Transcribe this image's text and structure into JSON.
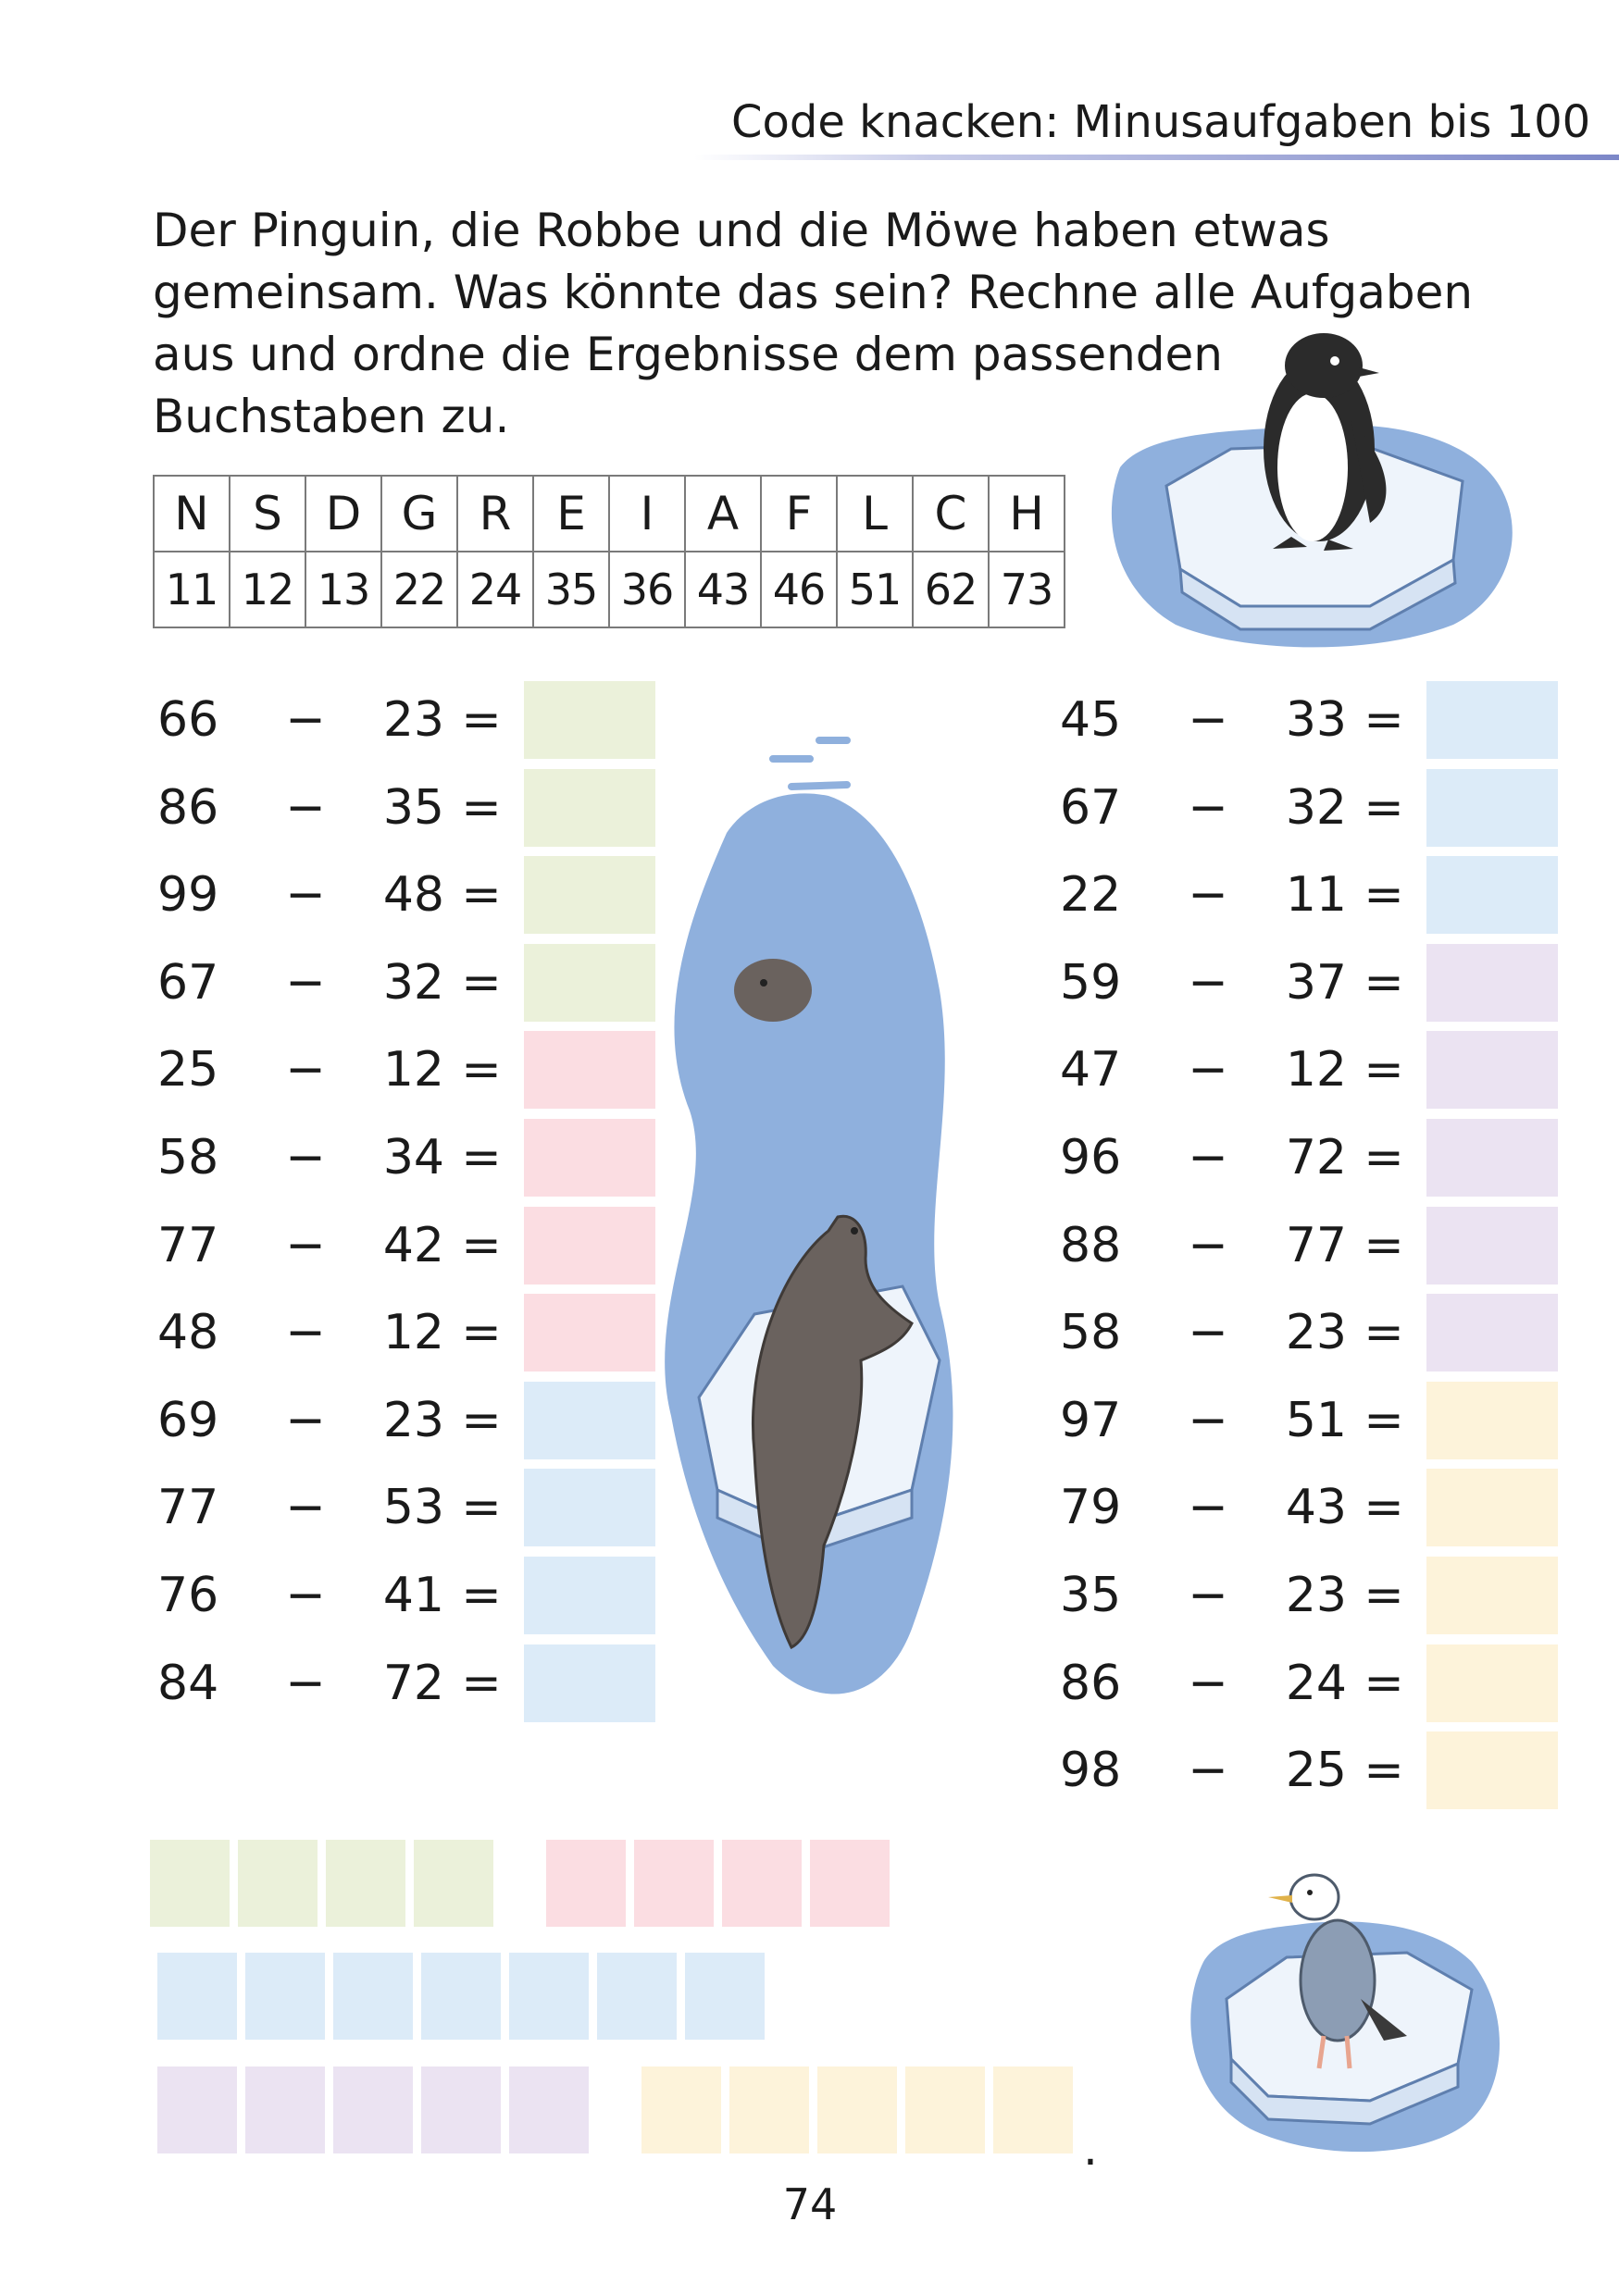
{
  "header": {
    "title": "Code knacken: Minusaufgaben bis 100"
  },
  "instructions": {
    "lines": [
      "Der Pinguin, die Robbe und die Möwe haben etwas",
      "gemeinsam. Was könnte das sein? Rechne alle Aufgaben",
      "aus und ordne die Ergebnisse dem passenden",
      "Buchstaben zu."
    ]
  },
  "code_table": {
    "letters": [
      "N",
      "S",
      "D",
      "G",
      "R",
      "E",
      "I",
      "A",
      "F",
      "L",
      "C",
      "H"
    ],
    "numbers": [
      "11",
      "12",
      "13",
      "22",
      "24",
      "35",
      "36",
      "43",
      "46",
      "51",
      "62",
      "73"
    ]
  },
  "left_column": [
    {
      "a": "66",
      "op": "−",
      "b": "23",
      "eq": "=",
      "color": "green"
    },
    {
      "a": "86",
      "op": "−",
      "b": "35",
      "eq": "=",
      "color": "green"
    },
    {
      "a": "99",
      "op": "−",
      "b": "48",
      "eq": "=",
      "color": "green"
    },
    {
      "a": "67",
      "op": "−",
      "b": "32",
      "eq": "=",
      "color": "green"
    },
    {
      "a": "25",
      "op": "−",
      "b": "12",
      "eq": "=",
      "color": "red"
    },
    {
      "a": "58",
      "op": "−",
      "b": "34",
      "eq": "=",
      "color": "red"
    },
    {
      "a": "77",
      "op": "−",
      "b": "42",
      "eq": "=",
      "color": "red"
    },
    {
      "a": "48",
      "op": "−",
      "b": "12",
      "eq": "=",
      "color": "red"
    },
    {
      "a": "69",
      "op": "−",
      "b": "23",
      "eq": "=",
      "color": "blue"
    },
    {
      "a": "77",
      "op": "−",
      "b": "53",
      "eq": "=",
      "color": "blue"
    },
    {
      "a": "76",
      "op": "−",
      "b": "41",
      "eq": "=",
      "color": "blue"
    },
    {
      "a": "84",
      "op": "−",
      "b": "72",
      "eq": "=",
      "color": "blue"
    }
  ],
  "right_column": [
    {
      "a": "45",
      "op": "−",
      "b": "33",
      "eq": "=",
      "color": "blue"
    },
    {
      "a": "67",
      "op": "−",
      "b": "32",
      "eq": "=",
      "color": "blue"
    },
    {
      "a": "22",
      "op": "−",
      "b": "11",
      "eq": "=",
      "color": "blue"
    },
    {
      "a": "59",
      "op": "−",
      "b": "37",
      "eq": "=",
      "color": "purple"
    },
    {
      "a": "47",
      "op": "−",
      "b": "12",
      "eq": "=",
      "color": "purple"
    },
    {
      "a": "96",
      "op": "−",
      "b": "72",
      "eq": "=",
      "color": "purple"
    },
    {
      "a": "88",
      "op": "−",
      "b": "77",
      "eq": "=",
      "color": "purple"
    },
    {
      "a": "58",
      "op": "−",
      "b": "23",
      "eq": "=",
      "color": "purple"
    },
    {
      "a": "97",
      "op": "−",
      "b": "51",
      "eq": "=",
      "color": "yellow"
    },
    {
      "a": "79",
      "op": "−",
      "b": "43",
      "eq": "=",
      "color": "yellow"
    },
    {
      "a": "35",
      "op": "−",
      "b": "23",
      "eq": "=",
      "color": "yellow"
    },
    {
      "a": "86",
      "op": "−",
      "b": "24",
      "eq": "=",
      "color": "yellow"
    },
    {
      "a": "98",
      "op": "−",
      "b": "25",
      "eq": "=",
      "color": "yellow"
    }
  ],
  "answer_rows": [
    [
      {
        "color": "green",
        "count": 4
      },
      {
        "color": "red",
        "count": 4
      }
    ],
    [
      {
        "color": "blue",
        "count": 7
      }
    ],
    [
      {
        "color": "purple",
        "count": 5
      },
      {
        "color": "yellow",
        "count": 5
      }
    ]
  ],
  "answer_end": ".",
  "colors": {
    "green": "#ebf1da",
    "red": "#fbdde2",
    "blue": "#dcebf8",
    "purple": "#ebe3f2",
    "yellow": "#fdf3da",
    "water": "#8fb0dd",
    "ice": "#eef4fb"
  },
  "illustrations": [
    "penguin-icon",
    "seal-icon",
    "seagull-icon"
  ],
  "page_number": "74"
}
